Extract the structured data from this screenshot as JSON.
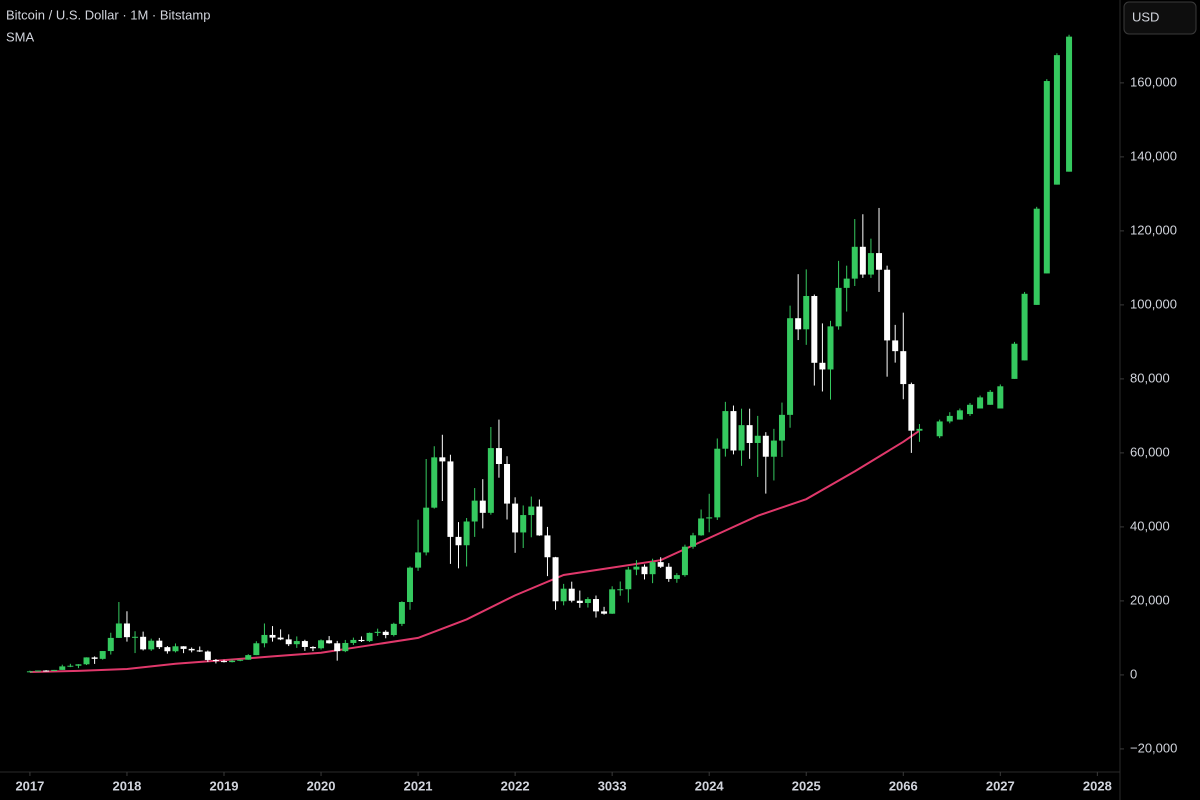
{
  "chart_data": {
    "type": "candlestick",
    "title": "Bitcoin / U.S. Dollar · 1M · Bitstamp",
    "currency": "USD",
    "up_color": "#35c95f",
    "down_color": "#ffffff",
    "xlim": [
      -3.7,
      134.8
    ],
    "ylim": [
      -25700,
      182400
    ],
    "xticks": [
      {
        "value": 0,
        "label": "2017"
      },
      {
        "value": 12,
        "label": "2018"
      },
      {
        "value": 24,
        "label": "2019"
      },
      {
        "value": 36,
        "label": "2020"
      },
      {
        "value": 48,
        "label": "2021"
      },
      {
        "value": 60,
        "label": "2022"
      },
      {
        "value": 72,
        "label": "3033"
      },
      {
        "value": 84,
        "label": "2024"
      },
      {
        "value": 96,
        "label": "2025"
      },
      {
        "value": 108,
        "label": "2066"
      },
      {
        "value": 120,
        "label": "2027"
      },
      {
        "value": 132,
        "label": "2028"
      }
    ],
    "yticks": [
      {
        "value": -20000,
        "label": "−20,000"
      },
      0,
      {
        "value": 20000,
        "label": "20,000"
      },
      {
        "value": 40000,
        "label": "40,000"
      },
      {
        "value": 60000,
        "label": "60,000"
      },
      {
        "value": 80000,
        "label": "80,000"
      },
      {
        "value": 100000,
        "label": "100,000"
      },
      {
        "value": 120000,
        "label": "120,000"
      },
      {
        "value": 140000,
        "label": "140,000"
      },
      {
        "value": 160000,
        "label": "160,000"
      }
    ],
    "x": [
      0,
      1,
      2,
      3,
      4,
      5,
      6,
      7,
      8,
      9,
      10,
      11,
      12,
      13,
      14,
      15,
      16,
      17,
      18,
      19,
      20,
      21,
      22,
      23,
      24,
      25,
      26,
      27,
      28,
      29,
      30,
      31,
      32,
      33,
      34,
      35,
      36,
      37,
      38,
      39,
      40,
      41,
      42,
      43,
      44,
      45,
      46,
      47,
      48,
      49,
      50,
      51,
      52,
      53,
      54,
      55,
      56,
      57,
      58,
      59,
      60,
      61,
      62,
      63,
      64,
      65,
      66,
      67,
      68,
      69,
      70,
      71,
      72,
      73,
      74,
      75,
      76,
      77,
      78,
      79,
      80,
      81,
      82,
      83,
      84,
      85,
      86,
      87,
      88,
      89,
      90,
      91,
      92,
      93,
      94,
      95,
      96,
      97,
      98,
      99,
      100,
      101,
      102,
      103,
      104,
      105,
      106,
      107,
      108,
      109,
      110,
      112.5,
      113.75,
      115,
      116.25,
      117.5,
      118.75,
      120,
      121.75,
      123,
      124.5,
      125.75,
      127,
      128.5
    ],
    "ohlc": [
      [
        963,
        1150,
        750,
        970
      ],
      [
        970,
        1200,
        920,
        1190
      ],
      [
        1190,
        1300,
        890,
        1080
      ],
      [
        1080,
        1350,
        1060,
        1350
      ],
      [
        1350,
        2760,
        1350,
        2300
      ],
      [
        2300,
        3000,
        2100,
        2480
      ],
      [
        2480,
        2920,
        1830,
        2870
      ],
      [
        2870,
        4750,
        2670,
        4730
      ],
      [
        4730,
        5000,
        2970,
        4340
      ],
      [
        4340,
        6450,
        4120,
        6450
      ],
      [
        6450,
        11400,
        5500,
        10000
      ],
      [
        10000,
        19700,
        10000,
        13900
      ],
      [
        13900,
        17200,
        9000,
        10200
      ],
      [
        10200,
        11800,
        5900,
        10300
      ],
      [
        10300,
        11700,
        6600,
        6900
      ],
      [
        6900,
        9800,
        6500,
        9250
      ],
      [
        9250,
        10000,
        7000,
        7500
      ],
      [
        7500,
        7800,
        5750,
        6390
      ],
      [
        6390,
        8500,
        6070,
        7730
      ],
      [
        7730,
        7760,
        5880,
        7030
      ],
      [
        7030,
        7420,
        6100,
        6630
      ],
      [
        6630,
        7680,
        6200,
        6320
      ],
      [
        6320,
        6600,
        3500,
        4040
      ],
      [
        4040,
        4300,
        3100,
        3740
      ],
      [
        3740,
        4100,
        3350,
        3460
      ],
      [
        3460,
        4200,
        3380,
        3820
      ],
      [
        3820,
        4100,
        3700,
        4100
      ],
      [
        4100,
        5600,
        4100,
        5350
      ],
      [
        5350,
        9100,
        5350,
        8550
      ],
      [
        8550,
        13900,
        7450,
        10800
      ],
      [
        10800,
        13200,
        9000,
        10080
      ],
      [
        10080,
        12300,
        9400,
        9600
      ],
      [
        9600,
        10950,
        7800,
        8300
      ],
      [
        8300,
        10400,
        7300,
        9150
      ],
      [
        9150,
        9500,
        6500,
        7550
      ],
      [
        7550,
        7750,
        6430,
        7200
      ],
      [
        7200,
        9600,
        6850,
        9350
      ],
      [
        9350,
        10500,
        8450,
        8550
      ],
      [
        8550,
        9200,
        3850,
        6420
      ],
      [
        6420,
        9450,
        6150,
        8630
      ],
      [
        8630,
        10080,
        8100,
        9450
      ],
      [
        9450,
        10400,
        8900,
        9140
      ],
      [
        9140,
        11450,
        8900,
        11350
      ],
      [
        11350,
        12500,
        10500,
        11650
      ],
      [
        11650,
        12050,
        9900,
        10780
      ],
      [
        10780,
        14100,
        10400,
        13800
      ],
      [
        13800,
        19900,
        13200,
        19700
      ],
      [
        19700,
        29300,
        17600,
        28990
      ],
      [
        28990,
        41950,
        28130,
        33100
      ],
      [
        33100,
        58350,
        32300,
        45200
      ],
      [
        45200,
        61800,
        44950,
        58800
      ],
      [
        58800,
        64900,
        47000,
        57700
      ],
      [
        57700,
        59500,
        30000,
        37300
      ],
      [
        37300,
        41300,
        28800,
        35040
      ],
      [
        35040,
        42400,
        29300,
        41460
      ],
      [
        41460,
        50500,
        37300,
        47100
      ],
      [
        47100,
        52900,
        39600,
        43800
      ],
      [
        43800,
        67000,
        43300,
        61300
      ],
      [
        61300,
        69000,
        53300,
        57000
      ],
      [
        57000,
        59100,
        42000,
        46300
      ],
      [
        46300,
        48000,
        33000,
        38500
      ],
      [
        38500,
        45800,
        34300,
        43200
      ],
      [
        43200,
        48200,
        37200,
        45500
      ],
      [
        45500,
        47400,
        37600,
        37700
      ],
      [
        37700,
        40000,
        26700,
        31800
      ],
      [
        31800,
        31900,
        17600,
        19900
      ],
      [
        19900,
        24600,
        18800,
        23300
      ],
      [
        23300,
        25200,
        19600,
        20050
      ],
      [
        20050,
        22800,
        18150,
        19430
      ],
      [
        19430,
        21000,
        18200,
        20500
      ],
      [
        20500,
        21450,
        15500,
        17170
      ],
      [
        17170,
        18400,
        16300,
        16540
      ],
      [
        16540,
        23950,
        16500,
        23130
      ],
      [
        23130,
        25250,
        21400,
        23150
      ],
      [
        23150,
        29200,
        19550,
        28470
      ],
      [
        28470,
        31000,
        26950,
        29250
      ],
      [
        29250,
        29850,
        25800,
        27220
      ],
      [
        27220,
        31400,
        24800,
        30480
      ],
      [
        30480,
        31800,
        28900,
        29230
      ],
      [
        29230,
        30200,
        25150,
        25940
      ],
      [
        25940,
        27500,
        24900,
        26970
      ],
      [
        26970,
        35200,
        26550,
        34650
      ],
      [
        34650,
        38400,
        34100,
        37720
      ],
      [
        37720,
        44700,
        37600,
        42280
      ],
      [
        42280,
        48950,
        38550,
        42580
      ],
      [
        42580,
        63900,
        41880,
        61130
      ],
      [
        61130,
        73800,
        59000,
        71300
      ],
      [
        71300,
        72800,
        59600,
        60650
      ],
      [
        60650,
        71950,
        56500,
        67500
      ],
      [
        67500,
        71950,
        58400,
        62680
      ],
      [
        62680,
        70000,
        53500,
        64630
      ],
      [
        64630,
        65600,
        49000,
        58970
      ],
      [
        58970,
        66500,
        52550,
        63330
      ],
      [
        63330,
        73600,
        58900,
        70280
      ],
      [
        70280,
        99800,
        66800,
        96400
      ],
      [
        96400,
        108300,
        90500,
        93400
      ],
      [
        93400,
        109600,
        89200,
        102400
      ],
      [
        102400,
        102800,
        78200,
        84350
      ],
      [
        84350,
        95000,
        76600,
        82550
      ],
      [
        82550,
        95700,
        74400,
        94200
      ],
      [
        94200,
        111900,
        93300,
        104600
      ],
      [
        104600,
        110600,
        98200,
        107100
      ],
      [
        107100,
        123200,
        105100,
        115700
      ],
      [
        115700,
        124500,
        107300,
        108200
      ],
      [
        108200,
        117900,
        107300,
        114000
      ],
      [
        114000,
        126200,
        103500,
        109500
      ],
      [
        109500,
        110600,
        80600,
        90400
      ],
      [
        90400,
        94600,
        84400,
        87500
      ],
      [
        87500,
        97900,
        74500,
        78600
      ],
      [
        78600,
        79000,
        60000,
        66000
      ],
      [
        66000,
        67800,
        63000,
        66500
      ],
      [
        64500,
        69000,
        64000,
        68500
      ],
      [
        68500,
        71000,
        68000,
        70000
      ],
      [
        69000,
        72000,
        69000,
        71500
      ],
      [
        70500,
        73500,
        70000,
        73000
      ],
      [
        72000,
        75500,
        72000,
        75000
      ],
      [
        73000,
        77000,
        73000,
        76500
      ],
      [
        72000,
        78500,
        72000,
        78000
      ],
      [
        80000,
        90000,
        80000,
        89500
      ],
      [
        85000,
        103500,
        85000,
        103000
      ],
      [
        100000,
        126500,
        100000,
        126000
      ],
      [
        108500,
        161000,
        108500,
        160500
      ],
      [
        132500,
        168000,
        132500,
        167500
      ],
      [
        136000,
        173000,
        136000,
        172500
      ]
    ],
    "sma": {
      "name": "SMA",
      "color": "#e0386b",
      "x": [
        0,
        6,
        12,
        18,
        24,
        30,
        36,
        42,
        48,
        54,
        60,
        66,
        72,
        78,
        84,
        90,
        96,
        102,
        108,
        110
      ],
      "values": [
        800,
        1100,
        1600,
        3000,
        4000,
        5000,
        6000,
        8000,
        10000,
        15000,
        21500,
        27000,
        29000,
        31000,
        37000,
        43000,
        47500,
        55000,
        63000,
        66000
      ]
    }
  }
}
